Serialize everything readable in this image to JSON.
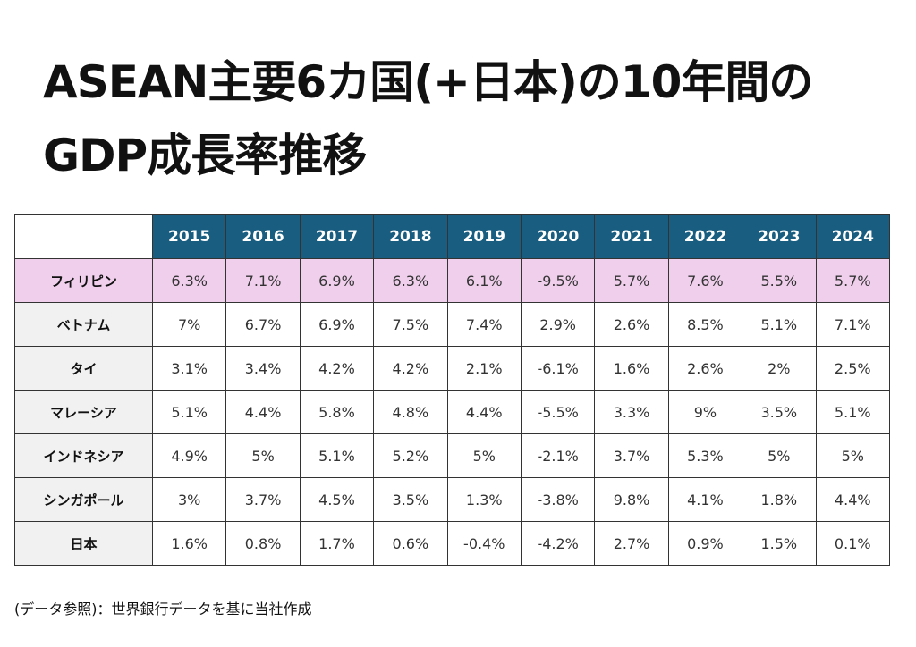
{
  "title": {
    "line1": "ASEAN主要6カ国(+日本)の10年間の",
    "line2": "GDP成長率推移"
  },
  "table": {
    "years": [
      "2015",
      "2016",
      "2017",
      "2018",
      "2019",
      "2020",
      "2021",
      "2022",
      "2023",
      "2024"
    ],
    "rows": [
      {
        "country": "フィリピン",
        "values": [
          "6.3%",
          "7.1%",
          "6.9%",
          "6.3%",
          "6.1%",
          "-9.5%",
          "5.7%",
          "7.6%",
          "5.5%",
          "5.7%"
        ]
      },
      {
        "country": "ベトナム",
        "values": [
          "7%",
          "6.7%",
          "6.9%",
          "7.5%",
          "7.4%",
          "2.9%",
          "2.6%",
          "8.5%",
          "5.1%",
          "7.1%"
        ]
      },
      {
        "country": "タイ",
        "values": [
          "3.1%",
          "3.4%",
          "4.2%",
          "4.2%",
          "2.1%",
          "-6.1%",
          "1.6%",
          "2.6%",
          "2%",
          "2.5%"
        ]
      },
      {
        "country": "マレーシア",
        "values": [
          "5.1%",
          "4.4%",
          "5.8%",
          "4.8%",
          "4.4%",
          "-5.5%",
          "3.3%",
          "9%",
          "3.5%",
          "5.1%"
        ]
      },
      {
        "country": "インドネシア",
        "values": [
          "4.9%",
          "5%",
          "5.1%",
          "5.2%",
          "5%",
          "-2.1%",
          "3.7%",
          "5.3%",
          "5%",
          "5%"
        ]
      },
      {
        "country": "シンガポール",
        "values": [
          "3%",
          "3.7%",
          "4.5%",
          "3.5%",
          "1.3%",
          "-3.8%",
          "9.8%",
          "4.1%",
          "1.8%",
          "4.4%"
        ]
      },
      {
        "country": "日本",
        "values": [
          "1.6%",
          "0.8%",
          "1.7%",
          "0.6%",
          "-0.4%",
          "-4.2%",
          "2.7%",
          "0.9%",
          "1.5%",
          "0.1%"
        ]
      }
    ]
  },
  "colors": {
    "header": "#195d80",
    "highlight": "#f0cfec",
    "row_header": "#f1f1f1"
  },
  "footnote": "(データ参照)：世界銀行データを基に当社作成"
}
